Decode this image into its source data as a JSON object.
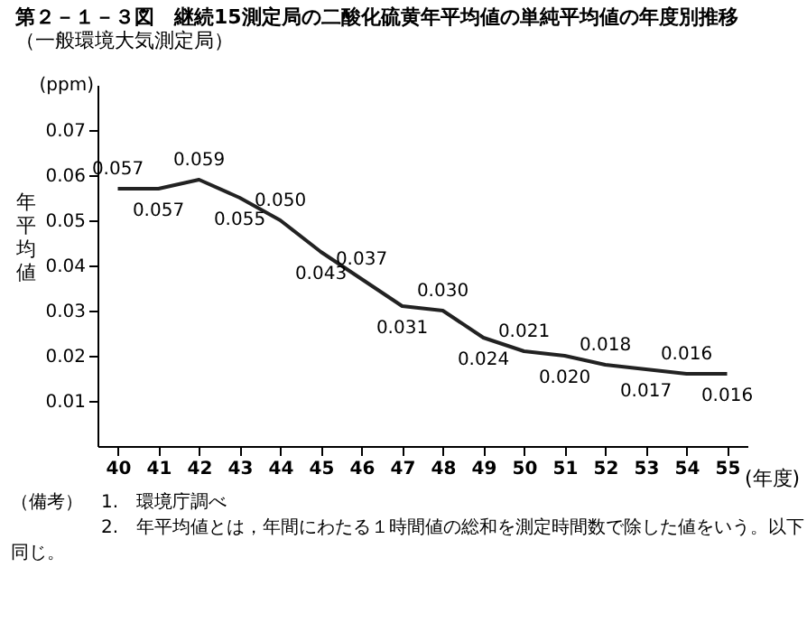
{
  "chart_data": {
    "type": "line",
    "title": "第２－１－３図　継続15測定局の二酸化硫黄年平均値の単純平均値の年度別推移",
    "subtitle": "（一般環境大気測定局）",
    "ylabel": "年平均値",
    "xlabel": "(年度)",
    "categories": [
      "40",
      "41",
      "42",
      "43",
      "44",
      "45",
      "46",
      "47",
      "48",
      "49",
      "50",
      "51",
      "52",
      "53",
      "54",
      "55"
    ],
    "series": [
      {
        "color": "#222222",
        "values": [
          0.057,
          0.057,
          0.059,
          0.055,
          0.05,
          0.043,
          0.037,
          0.031,
          0.03,
          0.024,
          0.021,
          0.02,
          0.018,
          0.017,
          0.016,
          0.016
        ],
        "value_labels": [
          "0.057",
          "0.057",
          "0.059",
          "0.055",
          "0.050",
          "0.043",
          "0.037",
          "0.031",
          "0.030",
          "0.024",
          "0.021",
          "0.020",
          "0.018",
          "0.017",
          "0.016",
          "0.016"
        ]
      }
    ],
    "ylim": [
      0,
      0.08
    ],
    "yticks": [
      0.01,
      0.02,
      0.03,
      0.04,
      0.05,
      0.06,
      0.07
    ],
    "grid": false,
    "legend": false,
    "marker": "none",
    "annotations": [
      "(ppm)",
      "（備考）　1.　環境庁調べ",
      "　　　　　2.　年平均値とは，年間にわたる１時間値の総和を測定時間数で除した値をいう。以下同じ。"
    ]
  }
}
